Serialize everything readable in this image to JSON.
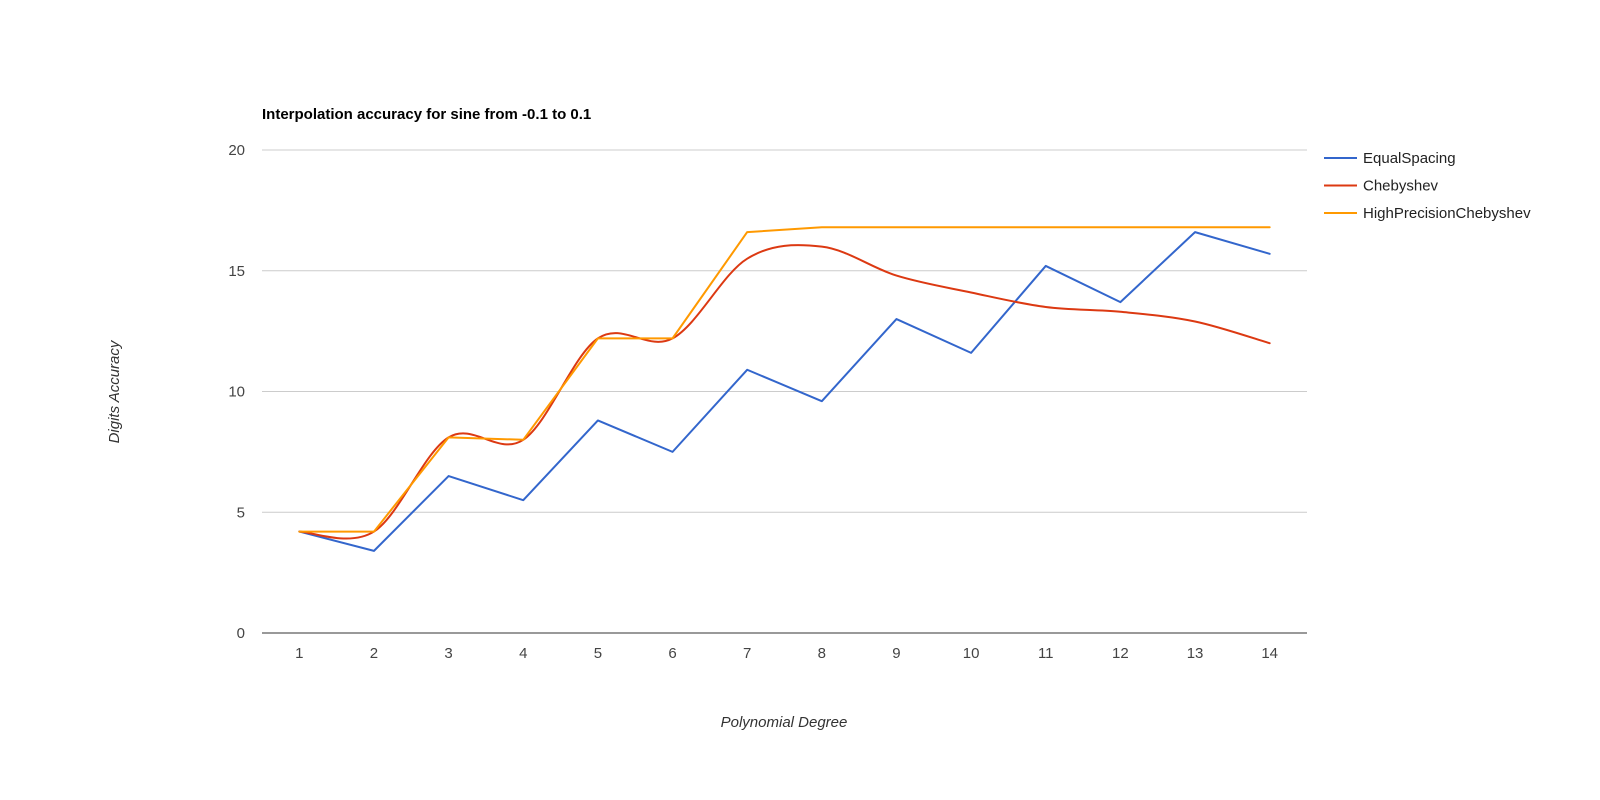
{
  "chart_data": {
    "type": "line",
    "title": "Interpolation accuracy for sine from -0.1 to 0.1",
    "xlabel": "Polynomial Degree",
    "ylabel": "Digits Accuracy",
    "x": [
      1,
      2,
      3,
      4,
      5,
      6,
      7,
      8,
      9,
      10,
      11,
      12,
      13,
      14
    ],
    "ylim": [
      0,
      20
    ],
    "yticks": [
      0,
      5,
      10,
      15,
      20
    ],
    "grid": true,
    "legend_position": "right",
    "series": [
      {
        "name": "EqualSpacing",
        "color": "#3366cc",
        "smooth": false,
        "values": [
          4.2,
          3.4,
          6.5,
          5.5,
          8.8,
          7.5,
          10.9,
          9.6,
          13.0,
          11.6,
          15.2,
          13.7,
          16.6,
          15.7
        ]
      },
      {
        "name": "Chebyshev",
        "color": "#dc3912",
        "smooth": true,
        "values": [
          4.2,
          4.2,
          8.1,
          8.0,
          12.2,
          12.2,
          15.5,
          16.0,
          14.8,
          14.1,
          13.5,
          13.3,
          12.9,
          12.0
        ]
      },
      {
        "name": "HighPrecisionChebyshev",
        "color": "#ff9900",
        "smooth": false,
        "values": [
          4.2,
          4.2,
          8.1,
          8.0,
          12.2,
          12.2,
          16.6,
          16.8,
          16.8,
          16.8,
          16.8,
          16.8,
          16.8,
          16.8
        ]
      }
    ]
  }
}
